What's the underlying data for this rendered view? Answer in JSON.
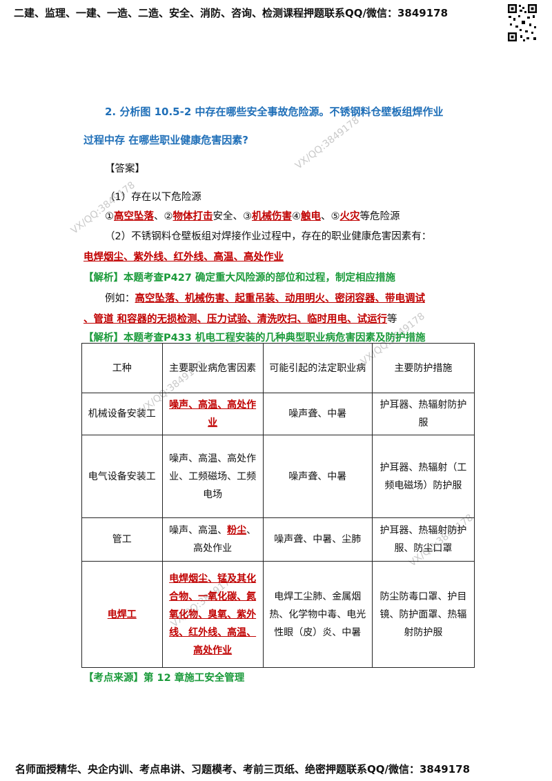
{
  "header": {
    "text": "二建、监理、一建、一造、二造、安全、消防、咨询、检测课程押题联系QQ/微信：3849178"
  },
  "footer": {
    "text": "名师面授精华、央企内训、考点串讲、习题模考、考前三页纸、绝密押题联系QQ/微信：3849178"
  },
  "watermark": "VX/QQ:3849178",
  "question": {
    "line1": "2. 分析图 10.5-2 中存在哪些安全事故危险源。不锈钢料仓壁板组焊作业",
    "line2": "过程中存 在哪些职业健康危害因素?"
  },
  "answer": {
    "title": "【答案】",
    "p1": "（1）存在以下危险源",
    "p1_items": {
      "m1": "①",
      "h1": "高空坠落",
      "s1": "、②",
      "h2": "物体打击",
      "s2": "安全、③",
      "h3": "机械伤害",
      "s3": "④",
      "h4": "触电",
      "s4": "、⑤",
      "h5": "火灾",
      "s5": "等危险源"
    },
    "p2": "（2）不锈钢料仓壁板组对焊接作业过程中，存在的职业健康危害因素有：",
    "p2_items": "电焊烟尘、紫外线、红外线、高温、高处作业"
  },
  "analysis1": {
    "title": "【解析】本题考查P427 确定重大风险源的部位和过程，制定相应措施",
    "example_prefix": "例如：",
    "example_red1": "高空坠落、机械伤害、起重吊装、动用明火、密闭容器、带电调试",
    "example_red2": "、管道 和容器的无损检测、压力试验、清洗吹扫、临时用电、试运行",
    "example_suffix": "等"
  },
  "analysis2": {
    "title": "【解析】本题考查P433 机电工程安装的几种典型职业病危害因素及防护措施"
  },
  "table": {
    "headers": [
      "工种",
      "主要职业病危害因素",
      "可能引起的法定职业病",
      "主要防护措施"
    ],
    "rows": [
      {
        "job": "机械设备安装工",
        "factor_red": "噪声、高温、高处作业",
        "factor": "",
        "disease": "噪声聋、中暑",
        "protect": "护耳器、热辐射防护服"
      },
      {
        "job": "电气设备安装工",
        "factor_red": "",
        "factor": "噪声、高温、高处作业、工频磁场、工频电场",
        "disease": "噪声聋、中暑",
        "protect": "护耳器、热辐射（工频电磁场）防护服"
      },
      {
        "job": "管工",
        "factor_red": "粉尘",
        "factor": "噪声、高温、",
        "factor_tail": "、高处作业",
        "disease": "噪声聋、中暑、尘肺",
        "protect": "护耳器、热辐射防护服、防尘口罩"
      },
      {
        "job": "电焊工",
        "factor_red": "电焊烟尘、锰及其化合物、一氧化碳、氮氧化物、臭氧、紫外线、红外线、高温、高处作业",
        "factor": "",
        "disease": "电焊工尘肺、金属烟热、化学物中毒、电光性眼（皮）炎、中暑",
        "protect": "防尘防毒口罩、护目镜、防护面罩、热辐射防护服"
      }
    ]
  },
  "source": {
    "text": "【考点来源】第 12 章施工安全管理"
  }
}
